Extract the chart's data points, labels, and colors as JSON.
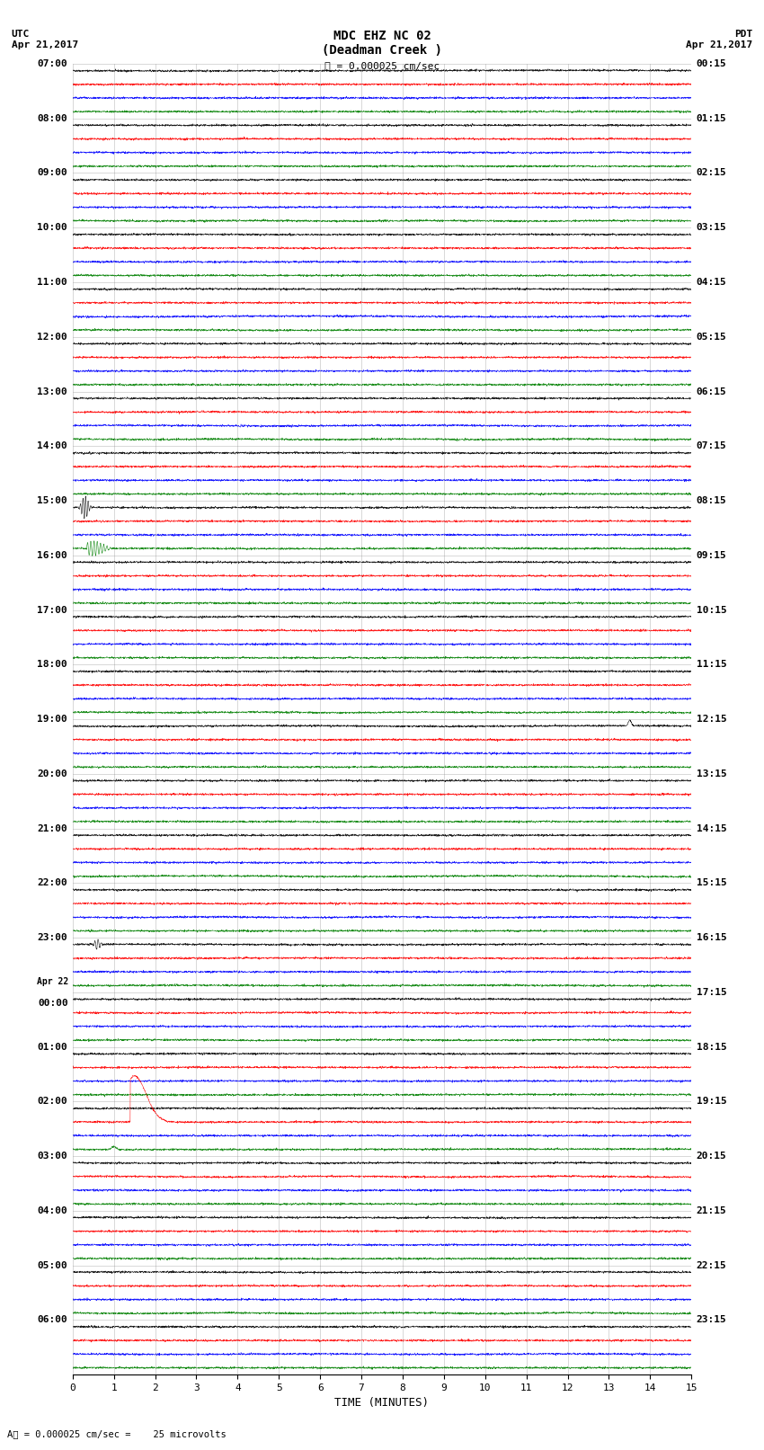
{
  "title_line1": "MDC EHZ NC 02",
  "title_line2": "(Deadman Creek )",
  "scale_label": "= 0.000025 cm/sec",
  "utc_label": "UTC\nApr 21,2017",
  "pdt_label": "PDT\nApr 21,2017",
  "xlabel": "TIME (MINUTES)",
  "xmin": 0,
  "xmax": 15,
  "xticks": [
    0,
    1,
    2,
    3,
    4,
    5,
    6,
    7,
    8,
    9,
    10,
    11,
    12,
    13,
    14,
    15
  ],
  "left_times": [
    "07:00",
    "08:00",
    "09:00",
    "10:00",
    "11:00",
    "12:00",
    "13:00",
    "14:00",
    "15:00",
    "16:00",
    "17:00",
    "18:00",
    "19:00",
    "20:00",
    "21:00",
    "22:00",
    "23:00",
    "Apr 22|00:00",
    "01:00",
    "02:00",
    "03:00",
    "04:00",
    "05:00",
    "06:00"
  ],
  "right_times": [
    "00:15",
    "01:15",
    "02:15",
    "03:15",
    "04:15",
    "05:15",
    "06:15",
    "07:15",
    "08:15",
    "09:15",
    "10:15",
    "11:15",
    "12:15",
    "13:15",
    "14:15",
    "15:15",
    "16:15",
    "17:15",
    "18:15",
    "19:15",
    "20:15",
    "21:15",
    "22:15",
    "23:15"
  ],
  "n_rows": 24,
  "n_traces_per_row": 4,
  "colors": [
    "black",
    "red",
    "blue",
    "green"
  ],
  "bg_color": "white",
  "noise_scale": 0.035,
  "fig_width": 8.5,
  "fig_height": 16.13,
  "grid_color": "#888888",
  "grid_alpha": 0.45
}
